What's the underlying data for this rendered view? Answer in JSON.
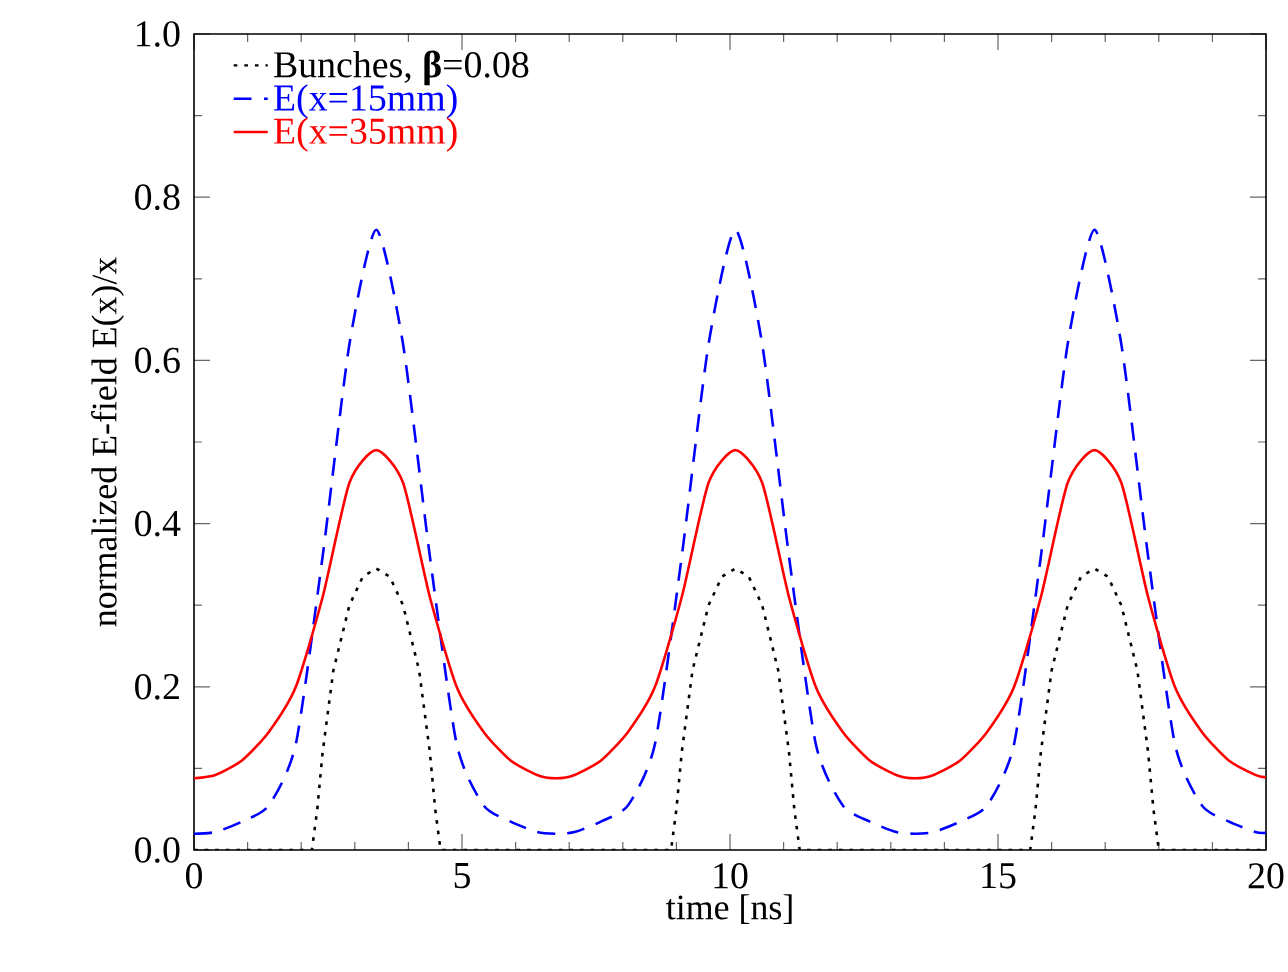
{
  "chart_data": {
    "type": "line",
    "xlabel": "time [ns]",
    "ylabel": "normalized E-field E(x)/x",
    "xlim": [
      0,
      20
    ],
    "xticks": [
      0,
      5,
      10,
      15,
      20
    ],
    "ylim": [
      0,
      1
    ],
    "yticks": [
      {
        "value": 0,
        "label": "0.0"
      },
      {
        "value": 0.2,
        "label": "0.2"
      },
      {
        "value": 0.4,
        "label": "0.4"
      },
      {
        "value": 0.6,
        "label": "0.6"
      },
      {
        "value": 0.8,
        "label": "0.8"
      },
      {
        "value": 1,
        "label": "1.0"
      }
    ],
    "legend": "top left",
    "series": [
      {
        "name": "Bunches, **β**=0.08",
        "color": "#000000",
        "line_style": "dotted",
        "x": [
          0,
          2.2,
          2.3,
          2.4,
          2.6,
          2.9,
          3.15,
          3.4,
          3.65,
          3.9,
          4.2,
          4.4,
          4.5,
          4.6,
          8.9,
          9.0,
          9.1,
          9.3,
          9.6,
          9.85,
          10.1,
          10.35,
          10.6,
          10.9,
          11.1,
          11.2,
          11.3,
          15.6,
          15.7,
          15.8,
          16.0,
          16.3,
          16.55,
          16.8,
          17.05,
          17.3,
          17.6,
          17.8,
          17.9,
          18.0,
          20
        ],
        "values": [
          0,
          0,
          0.05,
          0.12,
          0.22,
          0.3,
          0.335,
          0.345,
          0.335,
          0.3,
          0.22,
          0.12,
          0.05,
          0,
          0,
          0.05,
          0.12,
          0.22,
          0.3,
          0.335,
          0.345,
          0.335,
          0.3,
          0.22,
          0.12,
          0.05,
          0,
          0,
          0.05,
          0.12,
          0.22,
          0.3,
          0.335,
          0.345,
          0.335,
          0.3,
          0.22,
          0.12,
          0.05,
          0,
          0
        ]
      },
      {
        "name": "E(x=15mm)",
        "color": "#0000ff",
        "line_style": "dashed",
        "x": [
          0,
          0.4,
          0.9,
          1.4,
          1.9,
          2.4,
          2.9,
          3.4,
          3.9,
          4.4,
          4.9,
          5.4,
          5.9,
          6.4,
          6.75,
          7.1,
          7.6,
          8.1,
          8.6,
          9.1,
          9.6,
          10.1,
          10.6,
          11.1,
          11.6,
          12.1,
          12.6,
          13.1,
          13.45,
          13.8,
          14.3,
          14.8,
          15.3,
          15.8,
          16.3,
          16.8,
          17.3,
          17.8,
          18.3,
          18.8,
          19.3,
          19.8,
          20
        ],
        "values": [
          0.02,
          0.022,
          0.035,
          0.055,
          0.13,
          0.36,
          0.62,
          0.76,
          0.62,
          0.36,
          0.13,
          0.055,
          0.035,
          0.022,
          0.02,
          0.022,
          0.035,
          0.055,
          0.13,
          0.36,
          0.62,
          0.76,
          0.62,
          0.36,
          0.13,
          0.055,
          0.035,
          0.022,
          0.02,
          0.022,
          0.035,
          0.055,
          0.13,
          0.36,
          0.62,
          0.76,
          0.62,
          0.36,
          0.13,
          0.055,
          0.035,
          0.022,
          0.021
        ]
      },
      {
        "name": "E(x=35mm)",
        "color": "#ff0000",
        "line_style": "solid",
        "x": [
          0,
          0.4,
          0.9,
          1.4,
          1.9,
          2.4,
          2.9,
          3.4,
          3.9,
          4.4,
          4.9,
          5.4,
          5.9,
          6.4,
          6.75,
          7.1,
          7.6,
          8.1,
          8.6,
          9.1,
          9.6,
          10.1,
          10.6,
          11.1,
          11.6,
          12.1,
          12.6,
          13.1,
          13.45,
          13.8,
          14.3,
          14.8,
          15.3,
          15.8,
          16.3,
          16.8,
          17.3,
          17.8,
          18.3,
          18.8,
          19.3,
          19.8,
          20
        ],
        "values": [
          0.088,
          0.092,
          0.11,
          0.145,
          0.2,
          0.31,
          0.45,
          0.49,
          0.45,
          0.31,
          0.2,
          0.145,
          0.11,
          0.092,
          0.088,
          0.092,
          0.11,
          0.145,
          0.2,
          0.31,
          0.45,
          0.49,
          0.45,
          0.31,
          0.2,
          0.145,
          0.11,
          0.092,
          0.088,
          0.092,
          0.11,
          0.145,
          0.2,
          0.31,
          0.45,
          0.49,
          0.45,
          0.31,
          0.2,
          0.145,
          0.11,
          0.092,
          0.089
        ]
      }
    ]
  }
}
